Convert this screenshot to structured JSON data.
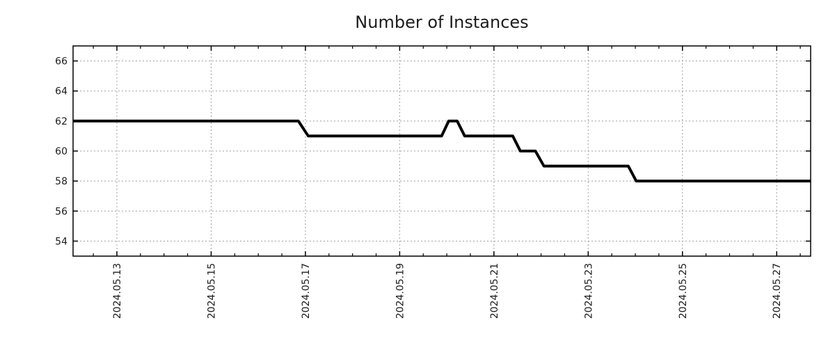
{
  "page": {
    "background": "#ffffff"
  },
  "chart_data": {
    "type": "line",
    "title": "Number of Instances",
    "x_unit": "day of May 2024",
    "xlim": [
      12.07,
      27.72
    ],
    "ylim": [
      53,
      67
    ],
    "x_major_ticks": [
      {
        "value": 13,
        "label": "2024.05.13"
      },
      {
        "value": 15,
        "label": "2024.05.15"
      },
      {
        "value": 17,
        "label": "2024.05.17"
      },
      {
        "value": 19,
        "label": "2024.05.19"
      },
      {
        "value": 21,
        "label": "2024.05.21"
      },
      {
        "value": 23,
        "label": "2024.05.23"
      },
      {
        "value": 25,
        "label": "2024.05.25"
      },
      {
        "value": 27,
        "label": "2024.05.27"
      }
    ],
    "x_minor_tick_step": 0.5,
    "y_major_ticks": [
      {
        "value": 54,
        "label": "54"
      },
      {
        "value": 56,
        "label": "56"
      },
      {
        "value": 58,
        "label": "58"
      },
      {
        "value": 60,
        "label": "60"
      },
      {
        "value": 62,
        "label": "62"
      },
      {
        "value": 64,
        "label": "64"
      },
      {
        "value": 66,
        "label": "66"
      }
    ],
    "grid": {
      "show": true,
      "style": "dotted",
      "color": "#9e9e9e",
      "at": "major-ticks"
    },
    "frame_color": "#000000",
    "text_color": "#1c1c1c",
    "legend": {
      "show": false
    },
    "series": [
      {
        "name": "Number of Instances",
        "color": "#000000",
        "stroke_width": 4,
        "points": [
          [
            12.07,
            62
          ],
          [
            16.85,
            62
          ],
          [
            17.06,
            61
          ],
          [
            19.89,
            61
          ],
          [
            20.04,
            62
          ],
          [
            20.22,
            62
          ],
          [
            20.38,
            61
          ],
          [
            21.4,
            61
          ],
          [
            21.56,
            60
          ],
          [
            21.88,
            60
          ],
          [
            22.06,
            59
          ],
          [
            23.85,
            59
          ],
          [
            24.02,
            58
          ],
          [
            27.72,
            58
          ]
        ]
      }
    ]
  }
}
